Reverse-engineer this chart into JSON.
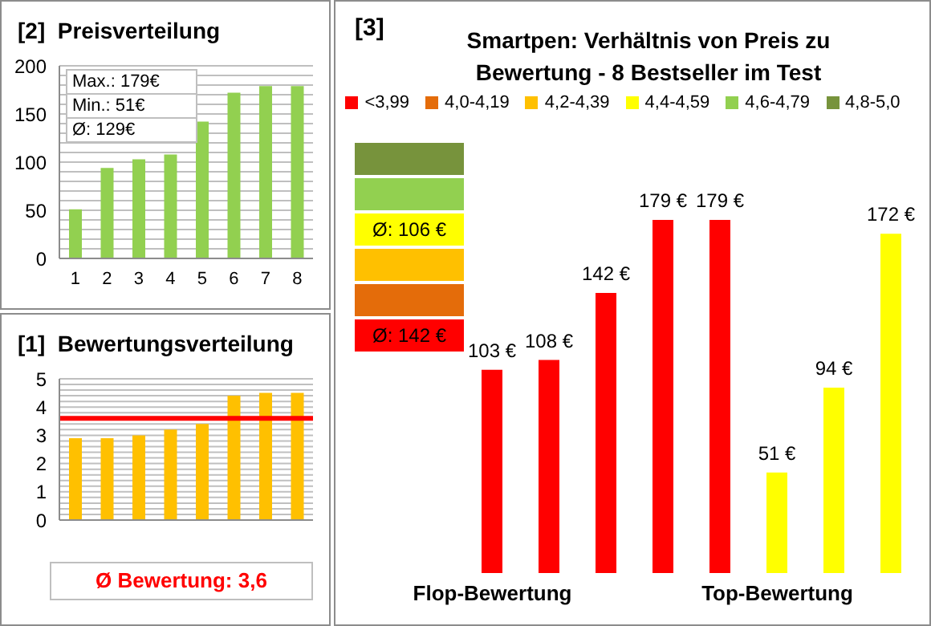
{
  "chart_data": [
    {
      "type": "bar",
      "title": "[2]  Preisverteilung",
      "categories": [
        "1",
        "2",
        "3",
        "4",
        "5",
        "6",
        "7",
        "8"
      ],
      "values": [
        51,
        94,
        103,
        108,
        142,
        172,
        179,
        179
      ],
      "color": "#92d050",
      "ylim": [
        0,
        200
      ],
      "yticks": [
        0,
        {
          "value": 10,
          "label": null
        },
        {
          "value": 20,
          "label": null
        },
        {
          "value": 30,
          "label": null
        },
        {
          "value": 40,
          "label": null
        },
        50,
        {
          "value": 60,
          "label": null
        },
        {
          "value": 70,
          "label": null
        },
        {
          "value": 80,
          "label": null
        },
        {
          "value": 90,
          "label": null
        },
        100,
        {
          "value": 110,
          "label": null
        },
        {
          "value": 120,
          "label": null
        },
        {
          "value": 130,
          "label": null
        },
        {
          "value": 140,
          "label": null
        },
        150,
        {
          "value": 160,
          "label": null
        },
        {
          "value": 170,
          "label": null
        },
        {
          "value": 180,
          "label": null
        },
        {
          "value": 190,
          "label": null
        },
        200
      ],
      "grid": "y",
      "annotations": [
        "Max.: 179€",
        "Min.: 51€",
        "Ø: 129€"
      ]
    },
    {
      "type": "bar",
      "title": "Smartpen: Verhältnis von Preis zu Bewertung - 8 Bestseller im Test",
      "subtitle": "[3]",
      "categories": [
        "Flop-Bewertung",
        null,
        null,
        null,
        null,
        "Top-Bewertung",
        null,
        null
      ],
      "stacked": true,
      "legend": "top",
      "series": [
        {
          "name": "<3,99",
          "color": "#ff0000",
          "values": [
            103,
            108,
            142,
            179,
            179,
            null,
            null,
            null
          ],
          "value_labels": [
            "103 €",
            "108 €",
            "142 €",
            "179 €",
            "179 €",
            null,
            null,
            null
          ]
        },
        {
          "name": "4,0-4,19",
          "color": "#e46c0a",
          "values": [
            null,
            null,
            null,
            null,
            null,
            null,
            null,
            null
          ]
        },
        {
          "name": "4,2-4,39",
          "color": "#ffc000",
          "values": [
            null,
            null,
            null,
            null,
            null,
            null,
            null,
            null
          ]
        },
        {
          "name": "4,4-4,59",
          "color": "#ffff00",
          "values": [
            null,
            null,
            null,
            null,
            null,
            51,
            94,
            172
          ],
          "value_labels": [
            null,
            null,
            null,
            null,
            null,
            "51 €",
            "94 €",
            "172 €"
          ]
        },
        {
          "name": "4,6-4,79",
          "color": "#92d050",
          "values": [
            null,
            null,
            null,
            null,
            null,
            null,
            null,
            null
          ]
        },
        {
          "name": "4,8-5,0",
          "color": "#77933c",
          "values": [
            null,
            null,
            null,
            null,
            null,
            null,
            null,
            null
          ]
        }
      ],
      "annotations": [
        "Ø: 142 €",
        "Ø: 106 €"
      ]
    },
    {
      "type": "bar",
      "title": "[1]  Bewertungsverteilung",
      "categories": [
        null,
        null,
        null,
        null,
        null,
        null,
        null,
        null
      ],
      "values": [
        2.9,
        2.9,
        3.0,
        3.2,
        3.4,
        4.4,
        4.5,
        4.5
      ],
      "color": "#ffc000",
      "ylim": [
        0,
        5
      ],
      "yticks": [
        0,
        {
          "value": 0.2,
          "label": null
        },
        {
          "value": 0.4,
          "label": null
        },
        {
          "value": 0.6,
          "label": null
        },
        {
          "value": 0.8,
          "label": null
        },
        1,
        {
          "value": 1.2,
          "label": null
        },
        {
          "value": 1.4,
          "label": null
        },
        {
          "value": 1.6,
          "label": null
        },
        {
          "value": 1.8,
          "label": null
        },
        2,
        {
          "value": 2.2,
          "label": null
        },
        {
          "value": 2.4,
          "label": null
        },
        {
          "value": 2.6,
          "label": null
        },
        {
          "value": 2.8,
          "label": null
        },
        3,
        {
          "value": 3.2,
          "label": null
        },
        {
          "value": 3.4,
          "label": null
        },
        {
          "value": 3.6,
          "label": null
        },
        {
          "value": 3.8,
          "label": null
        },
        4,
        {
          "value": 4.2,
          "label": null
        },
        {
          "value": 4.4,
          "label": null
        },
        {
          "value": 4.6,
          "label": null
        },
        {
          "value": 4.8,
          "label": null
        },
        5
      ],
      "grid": "y",
      "tick_labels": "y",
      "ref_lines": [
        {
          "axis": "y",
          "value": 3.6,
          "label": "Ø Bewertung: 3,6",
          "color": "#ff0000"
        }
      ]
    }
  ]
}
